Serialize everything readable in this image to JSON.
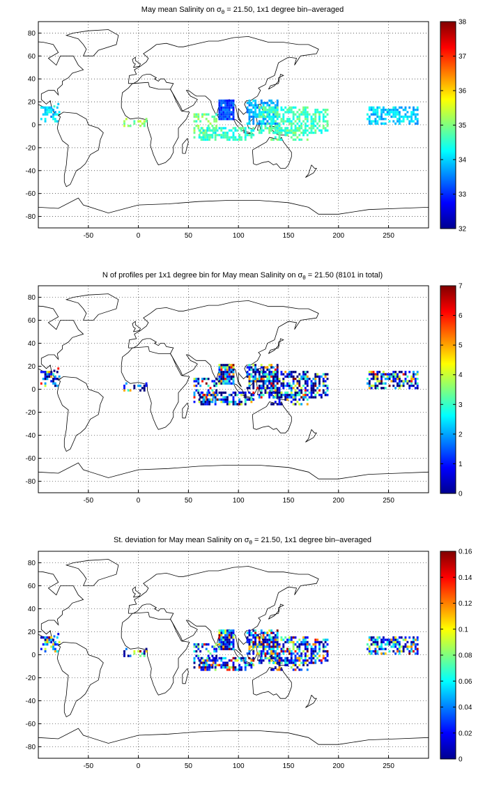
{
  "panels": [
    {
      "title_pre": "May mean Salinity on ",
      "title_post": " = 21.50, 1x1 degree bin–averaged",
      "colorbar_ticks": [
        "38",
        "37",
        "36",
        "35",
        "34",
        "33",
        "32"
      ],
      "clim": [
        32,
        38
      ],
      "field": "salinity"
    },
    {
      "title_pre": "N of profiles per 1x1 degree bin for May mean Salinity on ",
      "title_post": " = 21.50 (8101 in total)",
      "colorbar_ticks": [
        "7",
        "6",
        "5",
        "4",
        "3",
        "2",
        "1",
        "0"
      ],
      "clim": [
        0,
        7
      ],
      "field": "count"
    },
    {
      "title_pre": "St. deviation for May mean Salinity on ",
      "title_post": " = 21.50, 1x1 degree bin–averaged",
      "colorbar_ticks": [
        "0.16",
        "0.14",
        "0.12",
        "0.1",
        "0.08",
        "0.06",
        "0.04",
        "0.02",
        "0"
      ],
      "clim": [
        0,
        0.16
      ],
      "field": "stddev"
    }
  ],
  "sigma_symbol": "σ",
  "sigma_subscript": "θ",
  "x_ticks": [
    "-50",
    "0",
    "50",
    "100",
    "150",
    "200",
    "250"
  ],
  "y_ticks": [
    "80",
    "60",
    "40",
    "20",
    "0",
    "-20",
    "-40",
    "-60",
    "-80"
  ],
  "map": {
    "lon_range": [
      -100,
      290
    ],
    "lat_range": [
      -90,
      90
    ],
    "grid": "dotted",
    "colormap": "jet"
  }
}
